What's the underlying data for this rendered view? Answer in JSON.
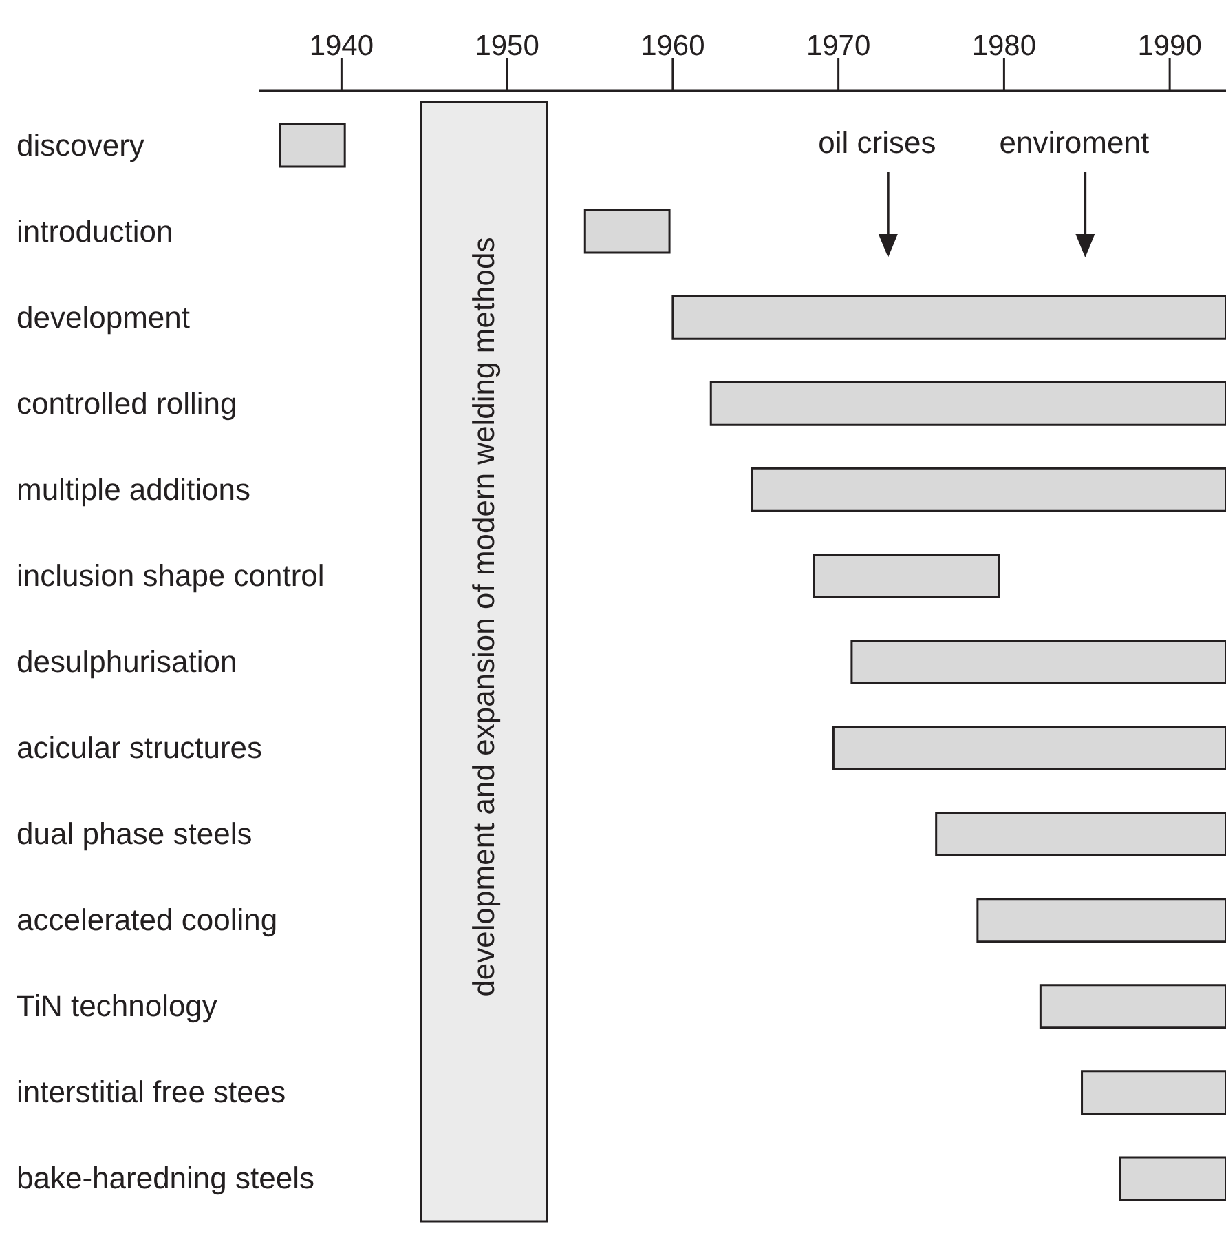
{
  "chart_data": {
    "type": "bar",
    "orientation": "horizontal",
    "categories": [
      "discovery",
      "introduction",
      "development",
      "controlled rolling",
      "multiple additions",
      "inclusion shape control",
      "desulphurisation",
      "acicular structures",
      "dual phase steels",
      "accelerated cooling",
      "TiN technology",
      "interstitial free stees",
      "bake-haredning steels"
    ],
    "base": [
      1936.3,
      1954.7,
      1960.0,
      1962.3,
      1964.8,
      1968.5,
      1970.8,
      1969.7,
      1975.9,
      1978.4,
      1982.2,
      1984.7,
      1987.0
    ],
    "values": [
      3.9,
      5.1,
      33.4,
      31.1,
      28.6,
      11.2,
      22.6,
      23.7,
      17.5,
      15.0,
      11.2,
      8.7,
      6.4
    ],
    "color": "#d9d9d9",
    "xlim": [
      1935,
      1993.4
    ],
    "xticks": [
      1940,
      1950,
      1960,
      1970,
      1980,
      1990
    ],
    "bands": [
      {
        "axis": "x",
        "from": 1944.8,
        "to": 1952.4,
        "label": "development and expansion of modern welding methods",
        "color": "#ebebeb"
      }
    ],
    "ref_lines": [
      {
        "axis": "x",
        "value": 1973.0,
        "label": "oil crises"
      },
      {
        "axis": "x",
        "value": 1984.9,
        "label": "enviroment"
      }
    ]
  }
}
